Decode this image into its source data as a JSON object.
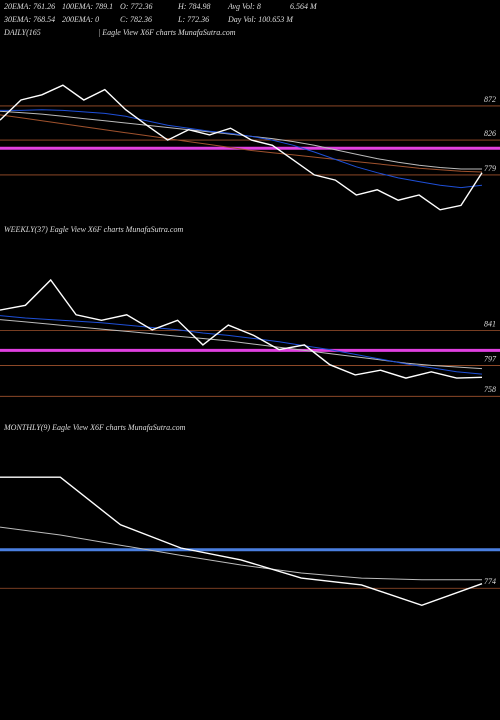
{
  "header": {
    "row1": [
      "20EMA: 761.26",
      "100EMA: 789.1",
      "O: 772.36",
      "H: 784.98",
      "Avg Vol: 8",
      "6.564 M"
    ],
    "row2": [
      "30EMA: 768.54",
      "200EMA: 0",
      "C: 782.36",
      "L: 772.36",
      "Day Vol: 100.653 M"
    ]
  },
  "chart_data": [
    {
      "type": "line",
      "title": "DAILY(165",
      "subtitle": "| Eagle  View  X6F charts MunafaSutra.com",
      "categories": [
        null,
        null,
        null,
        null,
        null,
        null,
        null,
        null,
        null,
        null,
        null,
        null,
        null,
        null,
        null,
        null,
        null,
        null,
        null,
        null,
        null,
        null,
        null,
        null
      ],
      "ylim": [
        725,
        907
      ],
      "yticks": [
        872,
        826,
        779
      ],
      "tick_line_color": "#a0522d",
      "reference_lines": [
        {
          "value": 815,
          "color": "#e040e0"
        }
      ],
      "series": [
        {
          "color": "#a0522d",
          "values": [
            860,
            856,
            852,
            848,
            844,
            840,
            836,
            832,
            828,
            824,
            820,
            816,
            812,
            809,
            806,
            803,
            800,
            797,
            794,
            791,
            788,
            786,
            784,
            783
          ]
        },
        {
          "color": "#bbbbbb",
          "values": [
            865,
            863,
            861,
            858,
            855,
            852,
            849,
            846,
            843,
            840,
            837,
            834,
            831,
            828,
            824,
            819,
            813,
            807,
            801,
            796,
            792,
            789,
            787,
            787
          ]
        },
        {
          "color": "#1e4fd8",
          "values": [
            866,
            866,
            867,
            866,
            864,
            862,
            858,
            852,
            846,
            842,
            838,
            835,
            831,
            826,
            819,
            810,
            800,
            790,
            782,
            775,
            770,
            765,
            762,
            765
          ]
        },
        {
          "color": "#ffffff",
          "values": [
            853,
            880,
            887,
            900,
            880,
            894,
            867,
            846,
            826,
            840,
            833,
            842,
            826,
            819,
            799,
            779,
            772,
            752,
            759,
            745,
            752,
            732,
            738,
            782
          ]
        }
      ]
    },
    {
      "type": "line",
      "title": "WEEKLY(37) Eagle  View  X6F charts MunafaSutra.com",
      "categories": [
        null,
        null,
        null,
        null,
        null,
        null,
        null,
        null,
        null,
        null,
        null,
        null,
        null,
        null,
        null,
        null,
        null,
        null,
        null,
        null
      ],
      "ylim": [
        747,
        905
      ],
      "yticks": [
        841,
        797,
        758
      ],
      "tick_line_color": "#a0522d",
      "reference_lines": [
        {
          "value": 816,
          "color": "#e040e0"
        }
      ],
      "series": [
        {
          "color": "#bbbbbb",
          "values": [
            855,
            852,
            849,
            846,
            843,
            840,
            837,
            834,
            831,
            828,
            824,
            820,
            816,
            812,
            808,
            804,
            800,
            797,
            795,
            793
          ]
        },
        {
          "color": "#1e4fd8",
          "values": [
            860,
            857,
            855,
            853,
            851,
            848,
            845,
            842,
            838,
            835,
            831,
            827,
            822,
            817,
            811,
            805,
            799,
            794,
            789,
            786
          ]
        },
        {
          "color": "#ffffff",
          "values": [
            867,
            873,
            905,
            861,
            854,
            861,
            842,
            854,
            823,
            848,
            835,
            817,
            823,
            798,
            785,
            791,
            781,
            789,
            781,
            782
          ]
        }
      ]
    },
    {
      "type": "line",
      "title": "MONTHLY(9) Eagle  View  X6F charts MunafaSutra.com",
      "categories": [
        null,
        null,
        null,
        null,
        null,
        null,
        null,
        null,
        null
      ],
      "ylim": [
        718,
        1018
      ],
      "yticks": [
        774
      ],
      "tick_line_color": "#a0522d",
      "reference_lines": [
        {
          "value": 842,
          "color": "#4a7fe0"
        }
      ],
      "series": [
        {
          "color": "#bbbbbb",
          "values": [
            882,
            868,
            850,
            832,
            815,
            801,
            792,
            789,
            789
          ]
        },
        {
          "color": "#ffffff",
          "values": [
            970,
            970,
            886,
            845,
            824,
            792,
            780,
            744,
            782
          ]
        }
      ]
    }
  ]
}
